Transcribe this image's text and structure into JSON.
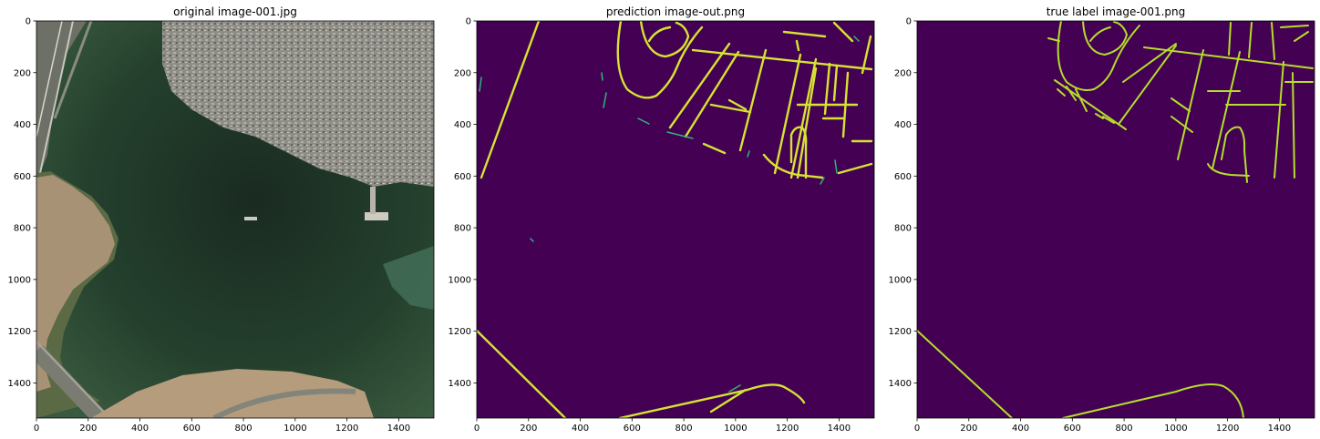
{
  "figure": {
    "panels": [
      {
        "title": "original image-001.jpg"
      },
      {
        "title": "prediction image-out.png"
      },
      {
        "title": "true label image-001.png"
      }
    ]
  },
  "colors": {
    "background_label": "#440154",
    "road_label": "#d6e332",
    "road_label_true": "#b5de2b",
    "road_prediction_edge": "#2fb47c",
    "water_dark": "#1b3224",
    "water_mid": "#2c4a33",
    "sand": "#a88e70",
    "suburb": "#8c8c86"
  },
  "chart_data": [
    {
      "type": "heatmap",
      "title": "original image-001.jpg",
      "xlim": [
        0,
        1536
      ],
      "ylim": [
        1536,
        0
      ],
      "xticks": [
        0,
        200,
        400,
        600,
        800,
        1000,
        1200,
        1400
      ],
      "yticks": [
        0,
        200,
        400,
        600,
        800,
        1000,
        1200,
        1400
      ],
      "content": "aerial photo"
    },
    {
      "type": "heatmap",
      "title": "prediction image-out.png",
      "xlim": [
        0,
        1536
      ],
      "ylim": [
        1536,
        0
      ],
      "xticks": [
        0,
        200,
        400,
        600,
        800,
        1000,
        1200,
        1400
      ],
      "yticks": [
        0,
        200,
        400,
        600,
        800,
        1000,
        1200,
        1400
      ],
      "content": "binary road mask"
    },
    {
      "type": "heatmap",
      "title": "true label image-001.png",
      "xlim": [
        0,
        1536
      ],
      "ylim": [
        1536,
        0
      ],
      "xticks": [
        0,
        200,
        400,
        600,
        800,
        1000,
        1200,
        1400
      ],
      "yticks": [
        0,
        200,
        400,
        600,
        800,
        1000,
        1200,
        1400
      ],
      "content": "binary road mask"
    }
  ]
}
